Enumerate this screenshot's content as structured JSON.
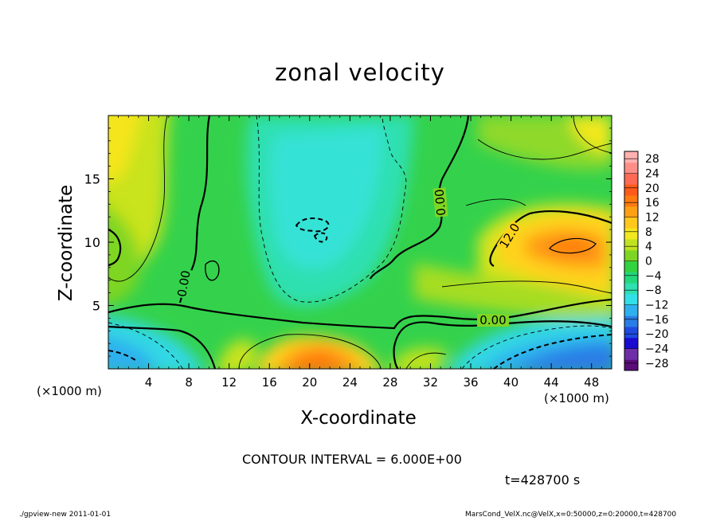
{
  "chart_data": {
    "type": "heatmap",
    "title": "zonal velocity",
    "xlabel": "X-coordinate",
    "ylabel": "Z-coordinate",
    "x_unit": "(×1000 m)",
    "xlim": [
      0,
      50
    ],
    "ylim": [
      0,
      20
    ],
    "x_ticks": [
      4,
      8,
      12,
      16,
      20,
      24,
      28,
      32,
      36,
      40,
      44,
      48
    ],
    "y_ticks": [
      5,
      10,
      15
    ],
    "colorbar": {
      "ticks": [
        28,
        24,
        20,
        16,
        12,
        8,
        4,
        0,
        -4,
        -8,
        -12,
        -16,
        -20,
        -24,
        -28
      ],
      "range": [
        -30,
        30
      ],
      "colors": [
        "#5a0d78",
        "#6f2da8",
        "#1a0ad0",
        "#1f4ae0",
        "#2a7de6",
        "#2fb0ee",
        "#33dfe8",
        "#2fe0b0",
        "#22d87a",
        "#32d340",
        "#7ed624",
        "#bfe21f",
        "#f2e81f",
        "#ffc81a",
        "#ff9f14",
        "#ff7a10",
        "#ff5a1a",
        "#ff6a55",
        "#ff8e88",
        "#ffb1b0"
      ]
    },
    "contour_labels": [
      "0.00",
      "0.00",
      "12.0",
      "0.00"
    ],
    "contour_interval": 6.0
  },
  "annotations": {
    "contour_interval_text": "CONTOUR INTERVAL =  6.000E+00",
    "time_text": "t=428700 s"
  },
  "footer": {
    "left": "./gpview-new   2011-01-01",
    "right": "MarsCond_VelX.nc@VelX,x=0:50000,z=0:20000,t=428700"
  }
}
